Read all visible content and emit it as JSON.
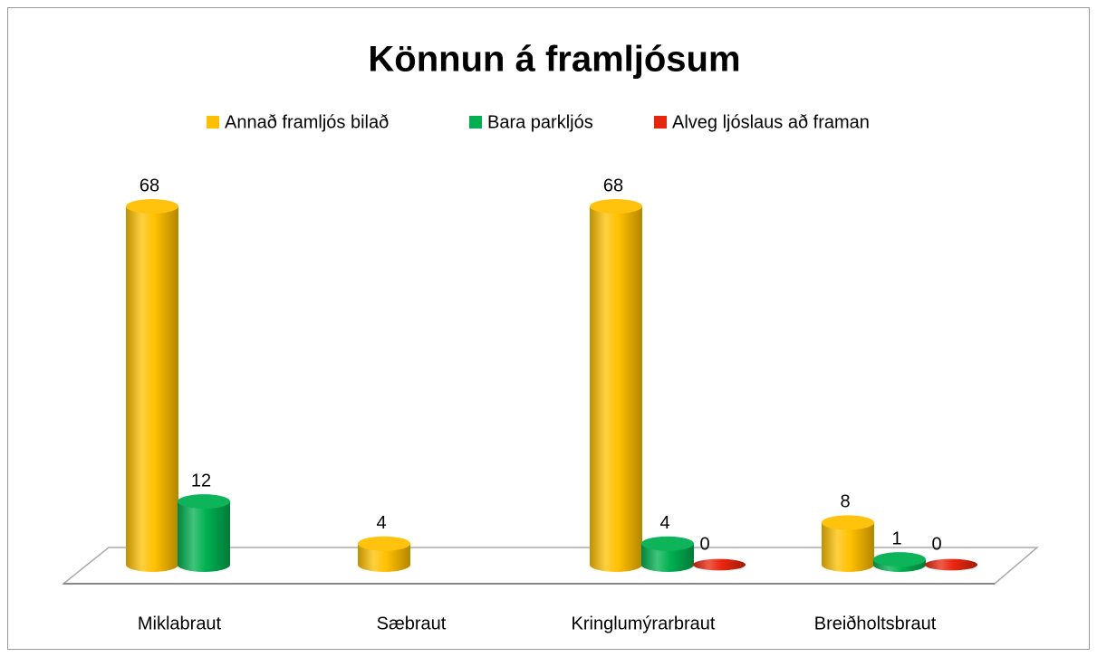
{
  "chart_data": {
    "type": "bar3d",
    "title": "Könnun á framljósum",
    "categories": [
      "Miklabraut",
      "Sæbraut",
      "Kringlumýrarbraut",
      "Breiðholtsbraut"
    ],
    "series": [
      {
        "name": "Annað framljós bilað",
        "color": "#ffc000",
        "values": [
          68,
          4,
          68,
          8
        ]
      },
      {
        "name": "Bara parkljós",
        "color": "#00b050",
        "values": [
          12,
          null,
          4,
          1
        ]
      },
      {
        "name": "Alveg ljóslaus að framan",
        "color": "#e8260e",
        "values": [
          null,
          null,
          0,
          0
        ]
      }
    ],
    "legend": "top",
    "data_labels": true
  }
}
